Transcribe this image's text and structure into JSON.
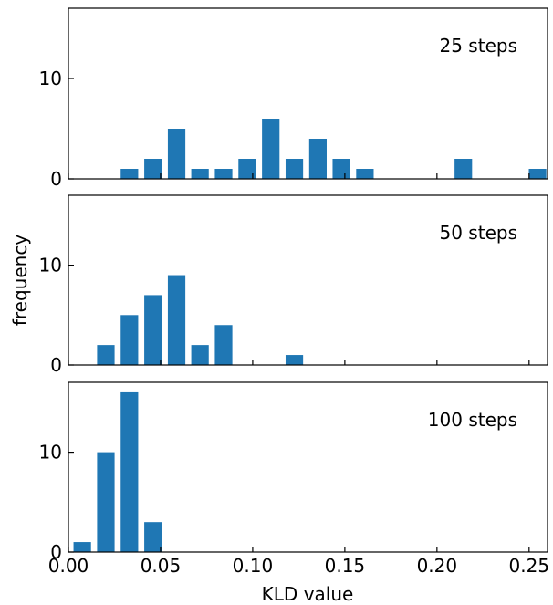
{
  "chart_data": {
    "type": "bar",
    "xlabel": "KLD value",
    "ylabel": "frequency",
    "xlim": [
      0.0,
      0.26
    ],
    "ylim": [
      0,
      17
    ],
    "xticks": [
      "0.00",
      "0.05",
      "0.10",
      "0.15",
      "0.20",
      "0.25"
    ],
    "yticks": [
      "0",
      "10"
    ],
    "bar_color": "#1f77b4",
    "grid": false,
    "panels": [
      {
        "annotation": "25 steps",
        "bars": [
          {
            "x": 0.0331,
            "value": 1
          },
          {
            "x": 0.0459,
            "value": 2
          },
          {
            "x": 0.0587,
            "value": 5
          },
          {
            "x": 0.0714,
            "value": 1
          },
          {
            "x": 0.0842,
            "value": 1
          },
          {
            "x": 0.097,
            "value": 2
          },
          {
            "x": 0.1098,
            "value": 6
          },
          {
            "x": 0.1226,
            "value": 2
          },
          {
            "x": 0.1354,
            "value": 4
          },
          {
            "x": 0.1481,
            "value": 2
          },
          {
            "x": 0.1609,
            "value": 1
          },
          {
            "x": 0.2143,
            "value": 2
          },
          {
            "x": 0.2546,
            "value": 1
          }
        ]
      },
      {
        "annotation": "50 steps",
        "bars": [
          {
            "x": 0.0203,
            "value": 2
          },
          {
            "x": 0.0331,
            "value": 5
          },
          {
            "x": 0.0459,
            "value": 7
          },
          {
            "x": 0.0587,
            "value": 9
          },
          {
            "x": 0.0714,
            "value": 2
          },
          {
            "x": 0.0842,
            "value": 4
          },
          {
            "x": 0.1226,
            "value": 1
          }
        ]
      },
      {
        "annotation": "100 steps",
        "bars": [
          {
            "x": 0.0075,
            "value": 1
          },
          {
            "x": 0.0203,
            "value": 10
          },
          {
            "x": 0.0331,
            "value": 16
          },
          {
            "x": 0.0459,
            "value": 3
          }
        ]
      }
    ]
  }
}
